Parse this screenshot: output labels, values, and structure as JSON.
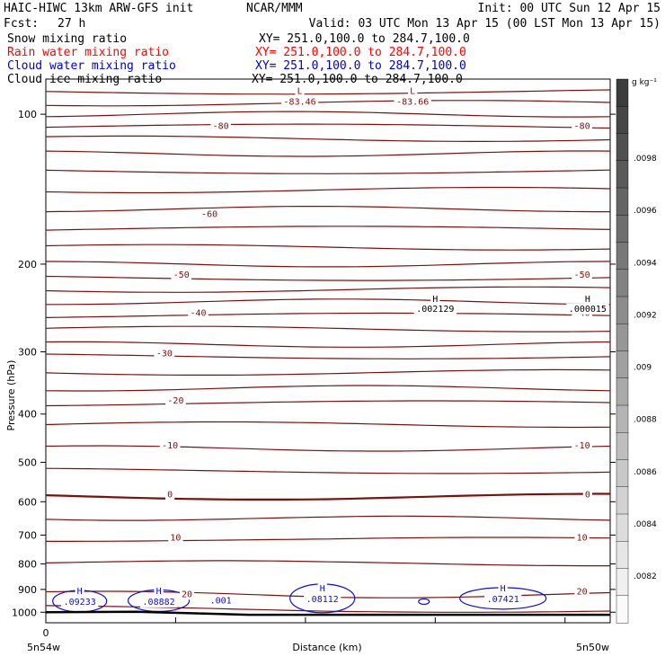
{
  "header": {
    "model": "HAIC-HIWC 13km ARW-GFS init",
    "org": "NCAR/MMM",
    "init": "Init: 00 UTC Sun 12 Apr 15",
    "fcst_label": "Fcst:",
    "fcst_value": "27 h",
    "valid": "Valid: 03 UTC Mon 13 Apr 15 (00 LST Mon 13 Apr 15)"
  },
  "fields": [
    {
      "name": "Snow mixing ratio",
      "xy": "XY= 251.0,100.0 to 284.7,100.0",
      "color": "#000000"
    },
    {
      "name": "Rain water mixing ratio",
      "xy": "XY= 251.0,100.0 to 284.7,100.0",
      "color": "#ff0000"
    },
    {
      "name": "Cloud water mixing ratio",
      "xy": "XY= 251.0,100.0 to 284.7,100.0",
      "color": "#0000cc"
    },
    {
      "name": "Cloud ice mixing ratio",
      "xy": "XY= 251.0,100.0 to 284.7,100.0",
      "color": "#000000"
    }
  ],
  "colors": {
    "temperature_contour": "#7a1010",
    "cloud_water_contour": "#1010c8",
    "terrain": "#000000"
  },
  "chart_data": {
    "type": "cross-section",
    "title": "",
    "xlabel": "Distance (km)",
    "ylabel": "Pressure (hPa)",
    "y_scale": "log-pressure",
    "y_ticks": [
      100,
      200,
      300,
      400,
      500,
      600,
      700,
      800,
      900,
      1000
    ],
    "ylim": [
      1050,
      85
    ],
    "x_ticks": [
      "0"
    ],
    "x_endpoints": [
      "5n54w",
      "5n50w"
    ],
    "temperature_contours": {
      "interval": 10,
      "levels": [
        -80,
        -70,
        -60,
        -50,
        -40,
        -30,
        -20,
        -10,
        0,
        10,
        20
      ],
      "labels": [
        {
          "text": "-80",
          "x": 0.31,
          "p": 107
        },
        {
          "text": "-80",
          "x": 0.95,
          "p": 107
        },
        {
          "text": "-60",
          "x": 0.29,
          "p": 161
        },
        {
          "text": "-50",
          "x": 0.24,
          "p": 213
        },
        {
          "text": "-50",
          "x": 0.95,
          "p": 213
        },
        {
          "text": "-40",
          "x": 0.27,
          "p": 254
        },
        {
          "text": "-40",
          "x": 0.95,
          "p": 254
        },
        {
          "text": "-30",
          "x": 0.21,
          "p": 306
        },
        {
          "text": "-20",
          "x": 0.23,
          "p": 381
        },
        {
          "text": "-10",
          "x": 0.22,
          "p": 469
        },
        {
          "text": "-10",
          "x": 0.95,
          "p": 469
        },
        {
          "text": "0",
          "x": 0.22,
          "p": 588
        },
        {
          "text": "0",
          "x": 0.96,
          "p": 588
        },
        {
          "text": "10",
          "x": 0.23,
          "p": 718
        },
        {
          "text": "10",
          "x": 0.95,
          "p": 718
        },
        {
          "text": "20",
          "x": 0.25,
          "p": 932
        },
        {
          "text": "20",
          "x": 0.95,
          "p": 922
        }
      ],
      "lows": [
        {
          "label": "L",
          "value": "-83.46",
          "x": 0.45,
          "p": 91
        },
        {
          "label": "L",
          "value": "-83.66",
          "x": 0.65,
          "p": 91
        }
      ]
    },
    "cloud_ice_maxima": [
      {
        "label": "H",
        "value": ".002129",
        "x": 0.69,
        "p": 238
      },
      {
        "label": "H",
        "value": ".000015",
        "x": 0.96,
        "p": 238
      }
    ],
    "cloud_water_maxima": [
      {
        "label": "H",
        "value": ".09233",
        "x": 0.06,
        "p": 950
      },
      {
        "label": "H",
        "value": ".08882",
        "x": 0.2,
        "p": 950
      },
      {
        "label": "",
        "value": ".001",
        "x": 0.31,
        "p": 945
      },
      {
        "label": "H",
        "value": ".08112",
        "x": 0.49,
        "p": 938
      },
      {
        "label": "H",
        "value": ".07421",
        "x": 0.81,
        "p": 938
      }
    ],
    "colorbar": {
      "units": "g kg⁻¹",
      "labels": [
        ".0098",
        ".0096",
        ".0094",
        ".0092",
        ".009",
        ".0088",
        ".0086",
        ".0084",
        ".0082"
      ]
    }
  }
}
